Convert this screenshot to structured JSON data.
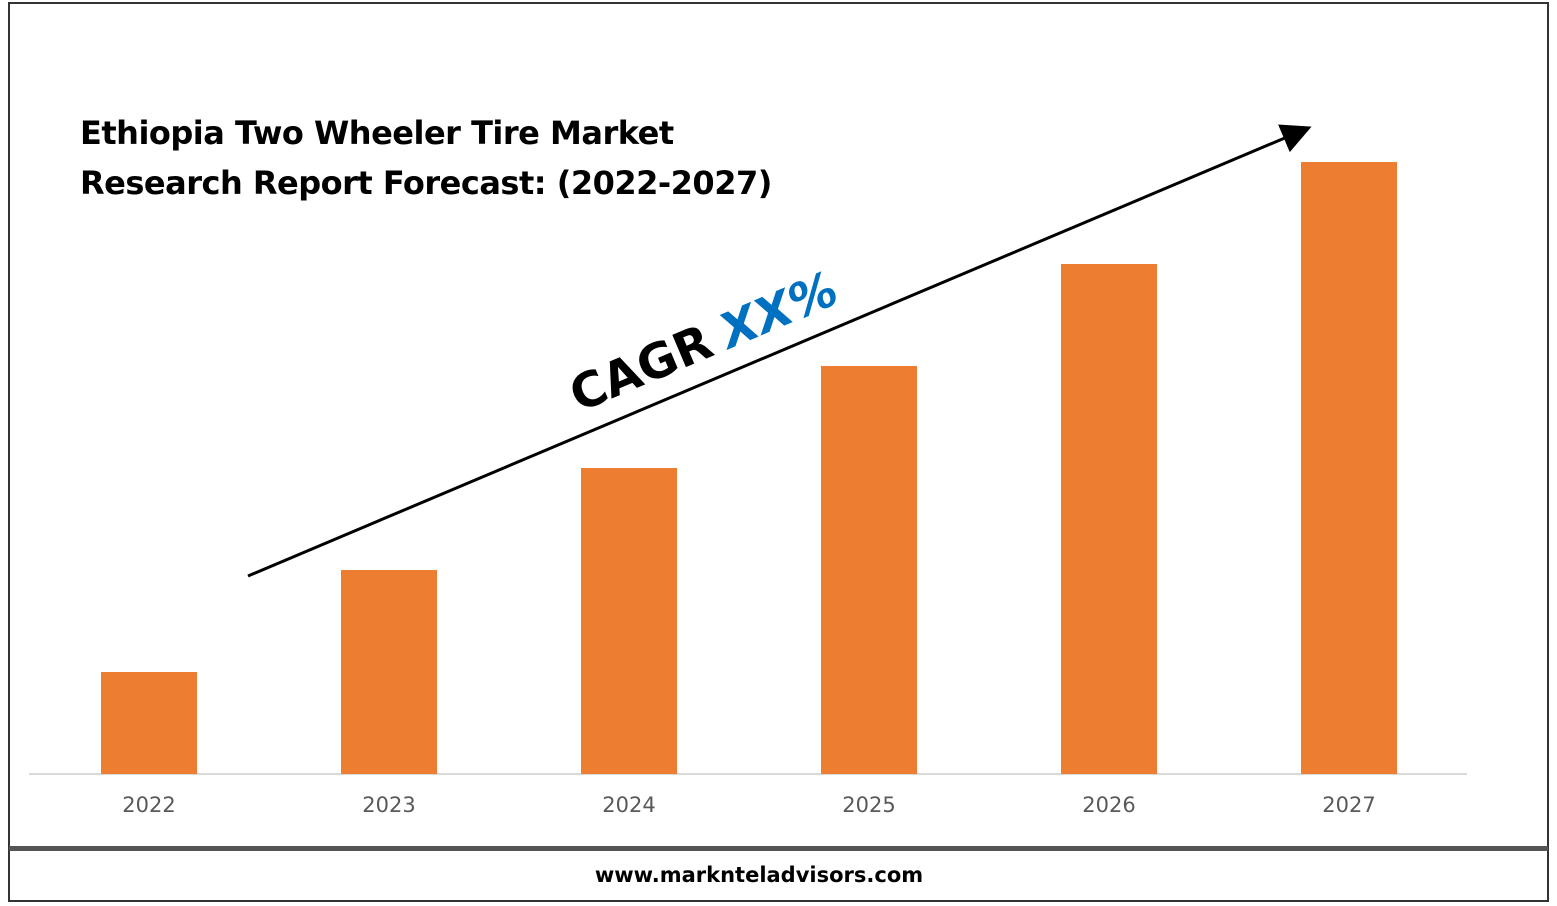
{
  "chart_data": {
    "type": "bar",
    "title": "Ethiopia Two Wheeler Tire Market Research Report Forecast: (2022-2027)",
    "categories": [
      "2022",
      "2023",
      "2024",
      "2025",
      "2026",
      "2027"
    ],
    "values": [
      1,
      2,
      3,
      4,
      5,
      6
    ],
    "color": "#ed7d31",
    "ylim": [
      0,
      6
    ],
    "annotation": {
      "label": "CAGR",
      "value": "XX%",
      "value_color": "#0070c0"
    },
    "source": "www.marknteladvisors.com"
  }
}
